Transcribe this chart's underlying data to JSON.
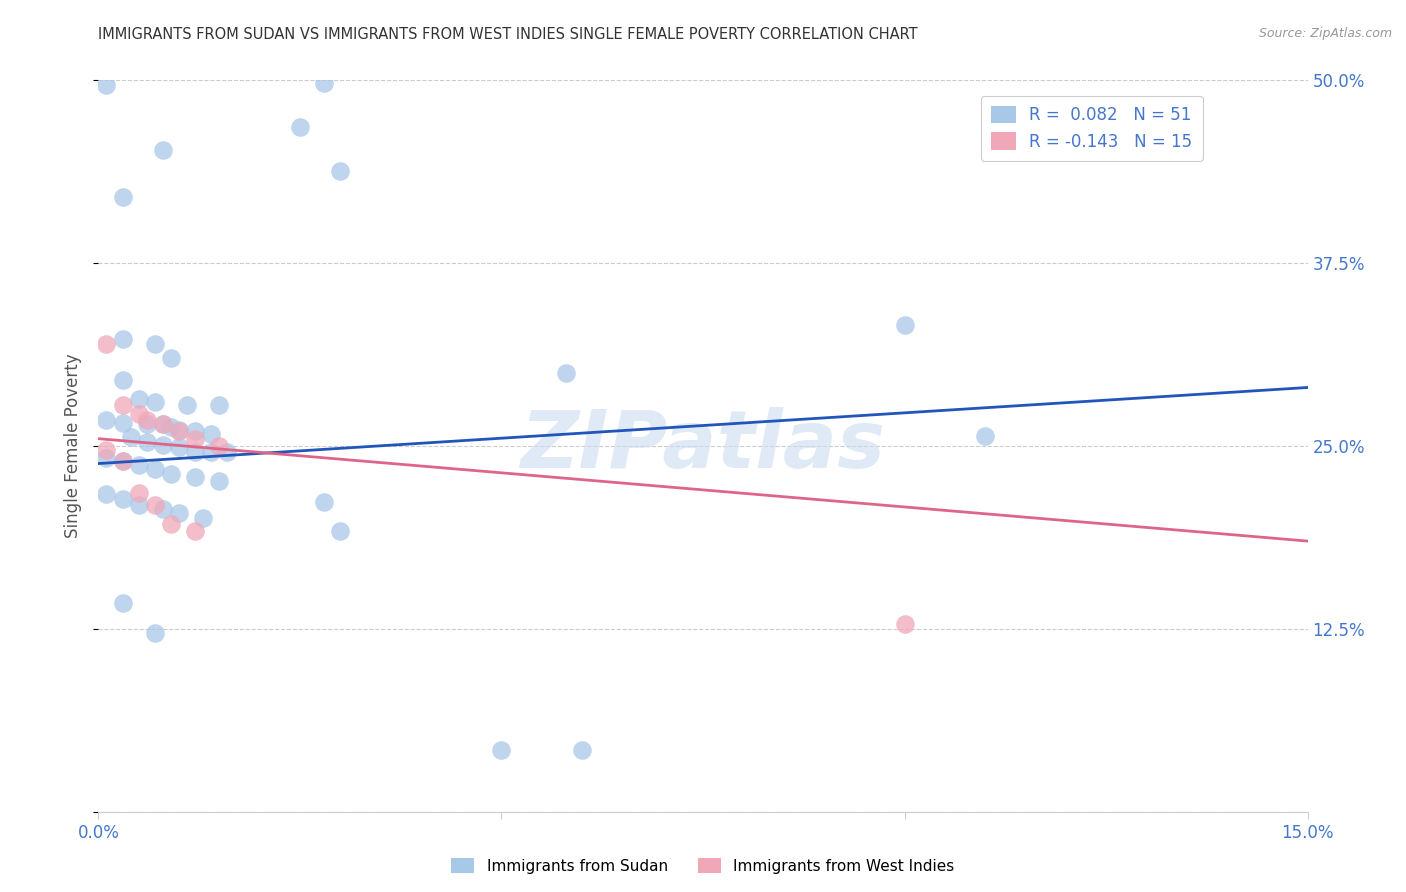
{
  "title": "IMMIGRANTS FROM SUDAN VS IMMIGRANTS FROM WEST INDIES SINGLE FEMALE POVERTY CORRELATION CHART",
  "source": "Source: ZipAtlas.com",
  "ylabel": "Single Female Poverty",
  "xlim": [
    0.0,
    0.15
  ],
  "ylim": [
    0.0,
    0.5
  ],
  "watermark": "ZIPatlas",
  "legend_entry_1": "R =  0.082   N = 51",
  "legend_entry_2": "R = -0.143   N = 15",
  "sudan_color": "#a8c8e8",
  "west_indies_color": "#f0a8b8",
  "sudan_line_color": "#2255bb",
  "west_indies_line_color": "#dd6688",
  "sudan_line_y0": 0.238,
  "sudan_line_y1": 0.29,
  "west_indies_line_y0": 0.255,
  "west_indies_line_y1": 0.185,
  "sudan_points": [
    [
      0.001,
      0.497
    ],
    [
      0.008,
      0.452
    ],
    [
      0.003,
      0.42
    ],
    [
      0.028,
      0.498
    ],
    [
      0.025,
      0.468
    ],
    [
      0.03,
      0.438
    ],
    [
      0.003,
      0.323
    ],
    [
      0.007,
      0.32
    ],
    [
      0.009,
      0.31
    ],
    [
      0.003,
      0.295
    ],
    [
      0.005,
      0.282
    ],
    [
      0.007,
      0.28
    ],
    [
      0.011,
      0.278
    ],
    [
      0.015,
      0.278
    ],
    [
      0.058,
      0.3
    ],
    [
      0.001,
      0.268
    ],
    [
      0.003,
      0.266
    ],
    [
      0.006,
      0.265
    ],
    [
      0.008,
      0.265
    ],
    [
      0.009,
      0.263
    ],
    [
      0.01,
      0.261
    ],
    [
      0.012,
      0.26
    ],
    [
      0.014,
      0.258
    ],
    [
      0.004,
      0.256
    ],
    [
      0.006,
      0.253
    ],
    [
      0.008,
      0.251
    ],
    [
      0.01,
      0.249
    ],
    [
      0.012,
      0.246
    ],
    [
      0.014,
      0.246
    ],
    [
      0.001,
      0.242
    ],
    [
      0.003,
      0.24
    ],
    [
      0.005,
      0.237
    ],
    [
      0.007,
      0.234
    ],
    [
      0.009,
      0.231
    ],
    [
      0.012,
      0.229
    ],
    [
      0.001,
      0.217
    ],
    [
      0.003,
      0.214
    ],
    [
      0.005,
      0.21
    ],
    [
      0.008,
      0.207
    ],
    [
      0.01,
      0.204
    ],
    [
      0.013,
      0.201
    ],
    [
      0.028,
      0.212
    ],
    [
      0.003,
      0.143
    ],
    [
      0.007,
      0.122
    ],
    [
      0.05,
      0.042
    ],
    [
      0.06,
      0.042
    ],
    [
      0.1,
      0.333
    ],
    [
      0.11,
      0.257
    ],
    [
      0.03,
      0.192
    ],
    [
      0.016,
      0.246
    ],
    [
      0.015,
      0.226
    ]
  ],
  "west_indies_points": [
    [
      0.001,
      0.32
    ],
    [
      0.003,
      0.278
    ],
    [
      0.005,
      0.272
    ],
    [
      0.006,
      0.268
    ],
    [
      0.008,
      0.265
    ],
    [
      0.01,
      0.26
    ],
    [
      0.012,
      0.255
    ],
    [
      0.015,
      0.25
    ],
    [
      0.001,
      0.247
    ],
    [
      0.003,
      0.24
    ],
    [
      0.005,
      0.218
    ],
    [
      0.007,
      0.21
    ],
    [
      0.009,
      0.197
    ],
    [
      0.012,
      0.192
    ],
    [
      0.1,
      0.128
    ]
  ],
  "grid_color": "#cccccc",
  "title_color": "#333333",
  "tick_color": "#4477cc",
  "background_color": "#ffffff"
}
